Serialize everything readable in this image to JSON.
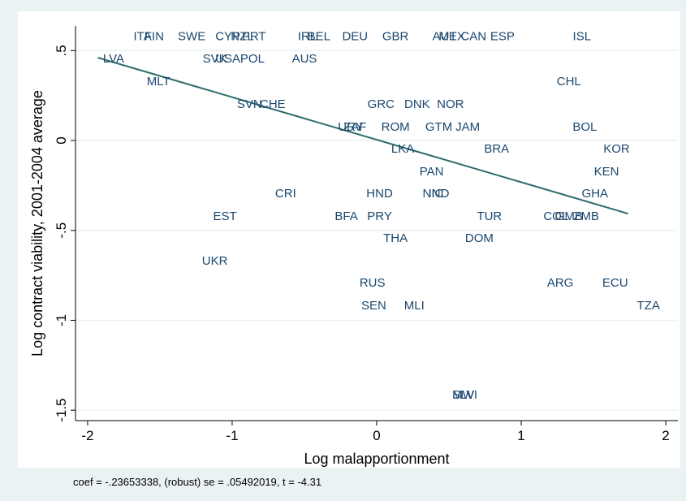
{
  "chart_data": {
    "type": "scatter",
    "x_label": "Log malapportionment",
    "y_label": "Log contract viability, 2001-2004 average",
    "note": "coef = -.23653338, (robust) se = .05492019, t = -4.31",
    "labels": [
      "ITA",
      "FIN",
      "SWE",
      "CYP",
      "NZL",
      "PRT",
      "IRL",
      "BEL",
      "DEU",
      "GBR",
      "AUT",
      "MEX",
      "CAN",
      "ESP",
      "ISL",
      "LVA",
      "SVK",
      "USA",
      "POL",
      "AUS",
      "MLT",
      "CHL",
      "SVN",
      "CHE",
      "GRC",
      "DNK",
      "NOR",
      "URY",
      "ZAF",
      "ROM",
      "GTM",
      "JAM",
      "BOL",
      "LKA",
      "BRA",
      "KOR",
      "PAN",
      "KEN",
      "CRI",
      "HND",
      "NIC",
      "IND",
      "GHA",
      "EST",
      "BFA",
      "PRY",
      "TUR",
      "COL",
      "GMB",
      "ZMB",
      "THA",
      "DOM",
      "UKR",
      "RUS",
      "ARG",
      "ECU",
      "SEN",
      "MLI",
      "TZA",
      "SLV",
      "MWI"
    ],
    "x": [
      -1.62,
      -1.54,
      -1.28,
      -1.03,
      -0.93,
      -0.85,
      -0.48,
      -0.4,
      -0.15,
      0.13,
      0.47,
      0.52,
      0.67,
      0.87,
      1.42,
      -1.82,
      -1.12,
      -1.03,
      -0.86,
      -0.5,
      -1.51,
      1.33,
      -0.88,
      -0.72,
      0.03,
      0.28,
      0.51,
      -0.18,
      -0.15,
      0.13,
      0.43,
      0.63,
      1.44,
      0.18,
      0.83,
      1.66,
      0.38,
      1.59,
      -0.63,
      0.02,
      0.39,
      0.43,
      1.51,
      -1.05,
      -0.21,
      0.02,
      0.78,
      1.24,
      1.33,
      1.45,
      0.13,
      0.71,
      -1.12,
      -0.03,
      1.27,
      1.65,
      -0.02,
      0.26,
      1.88,
      0.6,
      0.61
    ],
    "y": [
      0.58,
      0.58,
      0.58,
      0.58,
      0.58,
      0.58,
      0.58,
      0.58,
      0.58,
      0.58,
      0.58,
      0.58,
      0.58,
      0.58,
      0.58,
      0.456,
      0.456,
      0.456,
      0.456,
      0.456,
      0.33,
      0.33,
      0.203,
      0.203,
      0.203,
      0.203,
      0.203,
      0.077,
      0.077,
      0.077,
      0.077,
      0.077,
      0.077,
      -0.045,
      -0.045,
      -0.045,
      -0.172,
      -0.172,
      -0.293,
      -0.293,
      -0.293,
      -0.293,
      -0.293,
      -0.42,
      -0.42,
      -0.42,
      -0.42,
      -0.42,
      -0.42,
      -0.42,
      -0.542,
      -0.542,
      -0.668,
      -0.79,
      -0.79,
      -0.79,
      -0.916,
      -0.916,
      -0.916,
      -1.413,
      -1.413
    ],
    "fit": {
      "x": [
        -1.93,
        1.74
      ],
      "y": [
        0.461,
        -0.407
      ],
      "color": "#2d6b6b"
    },
    "color": "#1a476f",
    "xlim": [
      -2.084,
      2.084
    ],
    "ylim": [
      -1.558,
      0.637
    ],
    "xticks": [
      -2,
      -1,
      0,
      1,
      2
    ],
    "yticks": [
      {
        "value": 0.5,
        "label": ".5"
      },
      0,
      {
        "value": -0.5,
        "label": "-.5"
      },
      -1,
      {
        "value": -1.5,
        "label": "-1.5"
      }
    ],
    "grid": true
  }
}
